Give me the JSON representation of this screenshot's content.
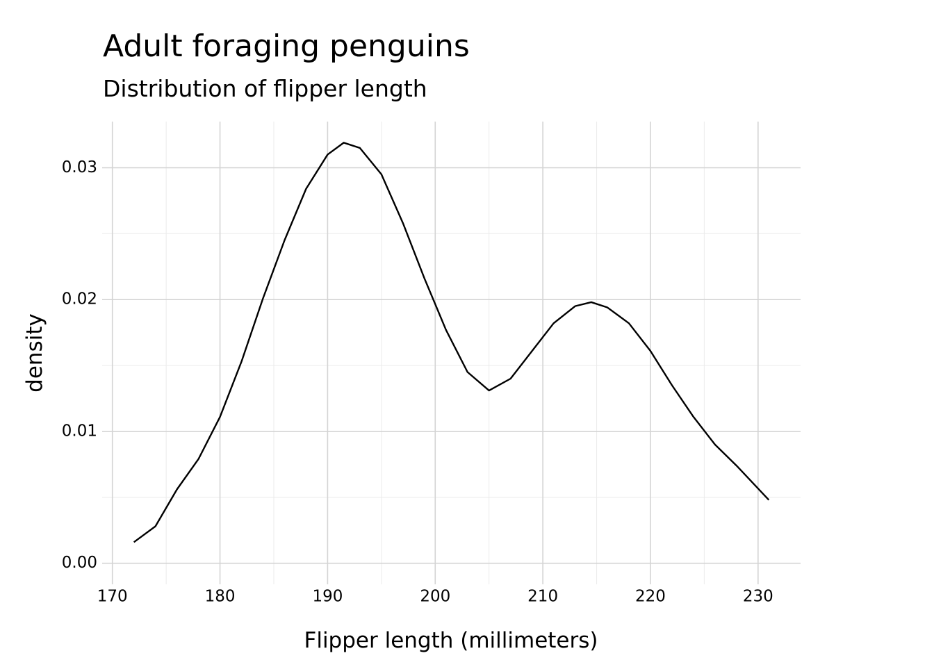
{
  "chart_data": {
    "type": "line",
    "title": "Adult foraging penguins",
    "subtitle": "Distribution of flipper length",
    "x_label": "Flipper length (millimeters)",
    "y_label": "density",
    "x": [
      172,
      174,
      176,
      178,
      180,
      182,
      184,
      186,
      188,
      190,
      191.5,
      193,
      195,
      197,
      199,
      201,
      203,
      205,
      207,
      209,
      211,
      213,
      214.5,
      216,
      218,
      220,
      222,
      224,
      226,
      228,
      231
    ],
    "series": [
      {
        "name": "density",
        "color": "#000000",
        "values": [
          0.0016,
          0.0028,
          0.0056,
          0.0079,
          0.0111,
          0.0153,
          0.0201,
          0.0245,
          0.0284,
          0.031,
          0.0319,
          0.0315,
          0.0295,
          0.0258,
          0.0216,
          0.0177,
          0.0145,
          0.0131,
          0.014,
          0.0161,
          0.0182,
          0.0195,
          0.0198,
          0.0194,
          0.0182,
          0.0161,
          0.0135,
          0.0111,
          0.009,
          0.0074,
          0.0048
        ]
      }
    ],
    "xlim": [
      169.05,
      233.95
    ],
    "ylim": [
      -0.0016,
      0.0335
    ],
    "xticks": [
      170,
      180,
      190,
      200,
      210,
      220,
      230
    ],
    "yticks": [
      {
        "value": 0,
        "label": "0.00"
      },
      0.01,
      0.02,
      0.03
    ],
    "grid": true,
    "minor_grid": true
  }
}
